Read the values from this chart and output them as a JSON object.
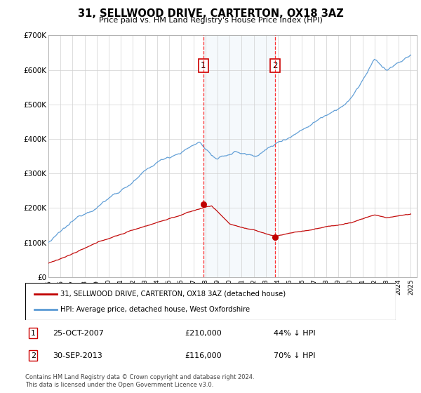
{
  "title": "31, SELLWOOD DRIVE, CARTERTON, OX18 3AZ",
  "subtitle": "Price paid vs. HM Land Registry's House Price Index (HPI)",
  "transaction1_date": 2007.82,
  "transaction1_price": 210000,
  "transaction2_date": 2013.75,
  "transaction2_price": 116000,
  "legend_line1": "31, SELLWOOD DRIVE, CARTERTON, OX18 3AZ (detached house)",
  "legend_line2": "HPI: Average price, detached house, West Oxfordshire",
  "footnote": "Contains HM Land Registry data © Crown copyright and database right 2024.\nThis data is licensed under the Open Government Licence v3.0.",
  "hpi_color": "#5b9bd5",
  "price_color": "#c00000",
  "ylim": [
    0,
    700000
  ],
  "xlim_start": 1995.0,
  "xlim_end": 2025.5,
  "table_row1_date": "25-OCT-2007",
  "table_row1_price": "£210,000",
  "table_row1_pct": "44% ↓ HPI",
  "table_row2_date": "30-SEP-2013",
  "table_row2_price": "£116,000",
  "table_row2_pct": "70% ↓ HPI"
}
